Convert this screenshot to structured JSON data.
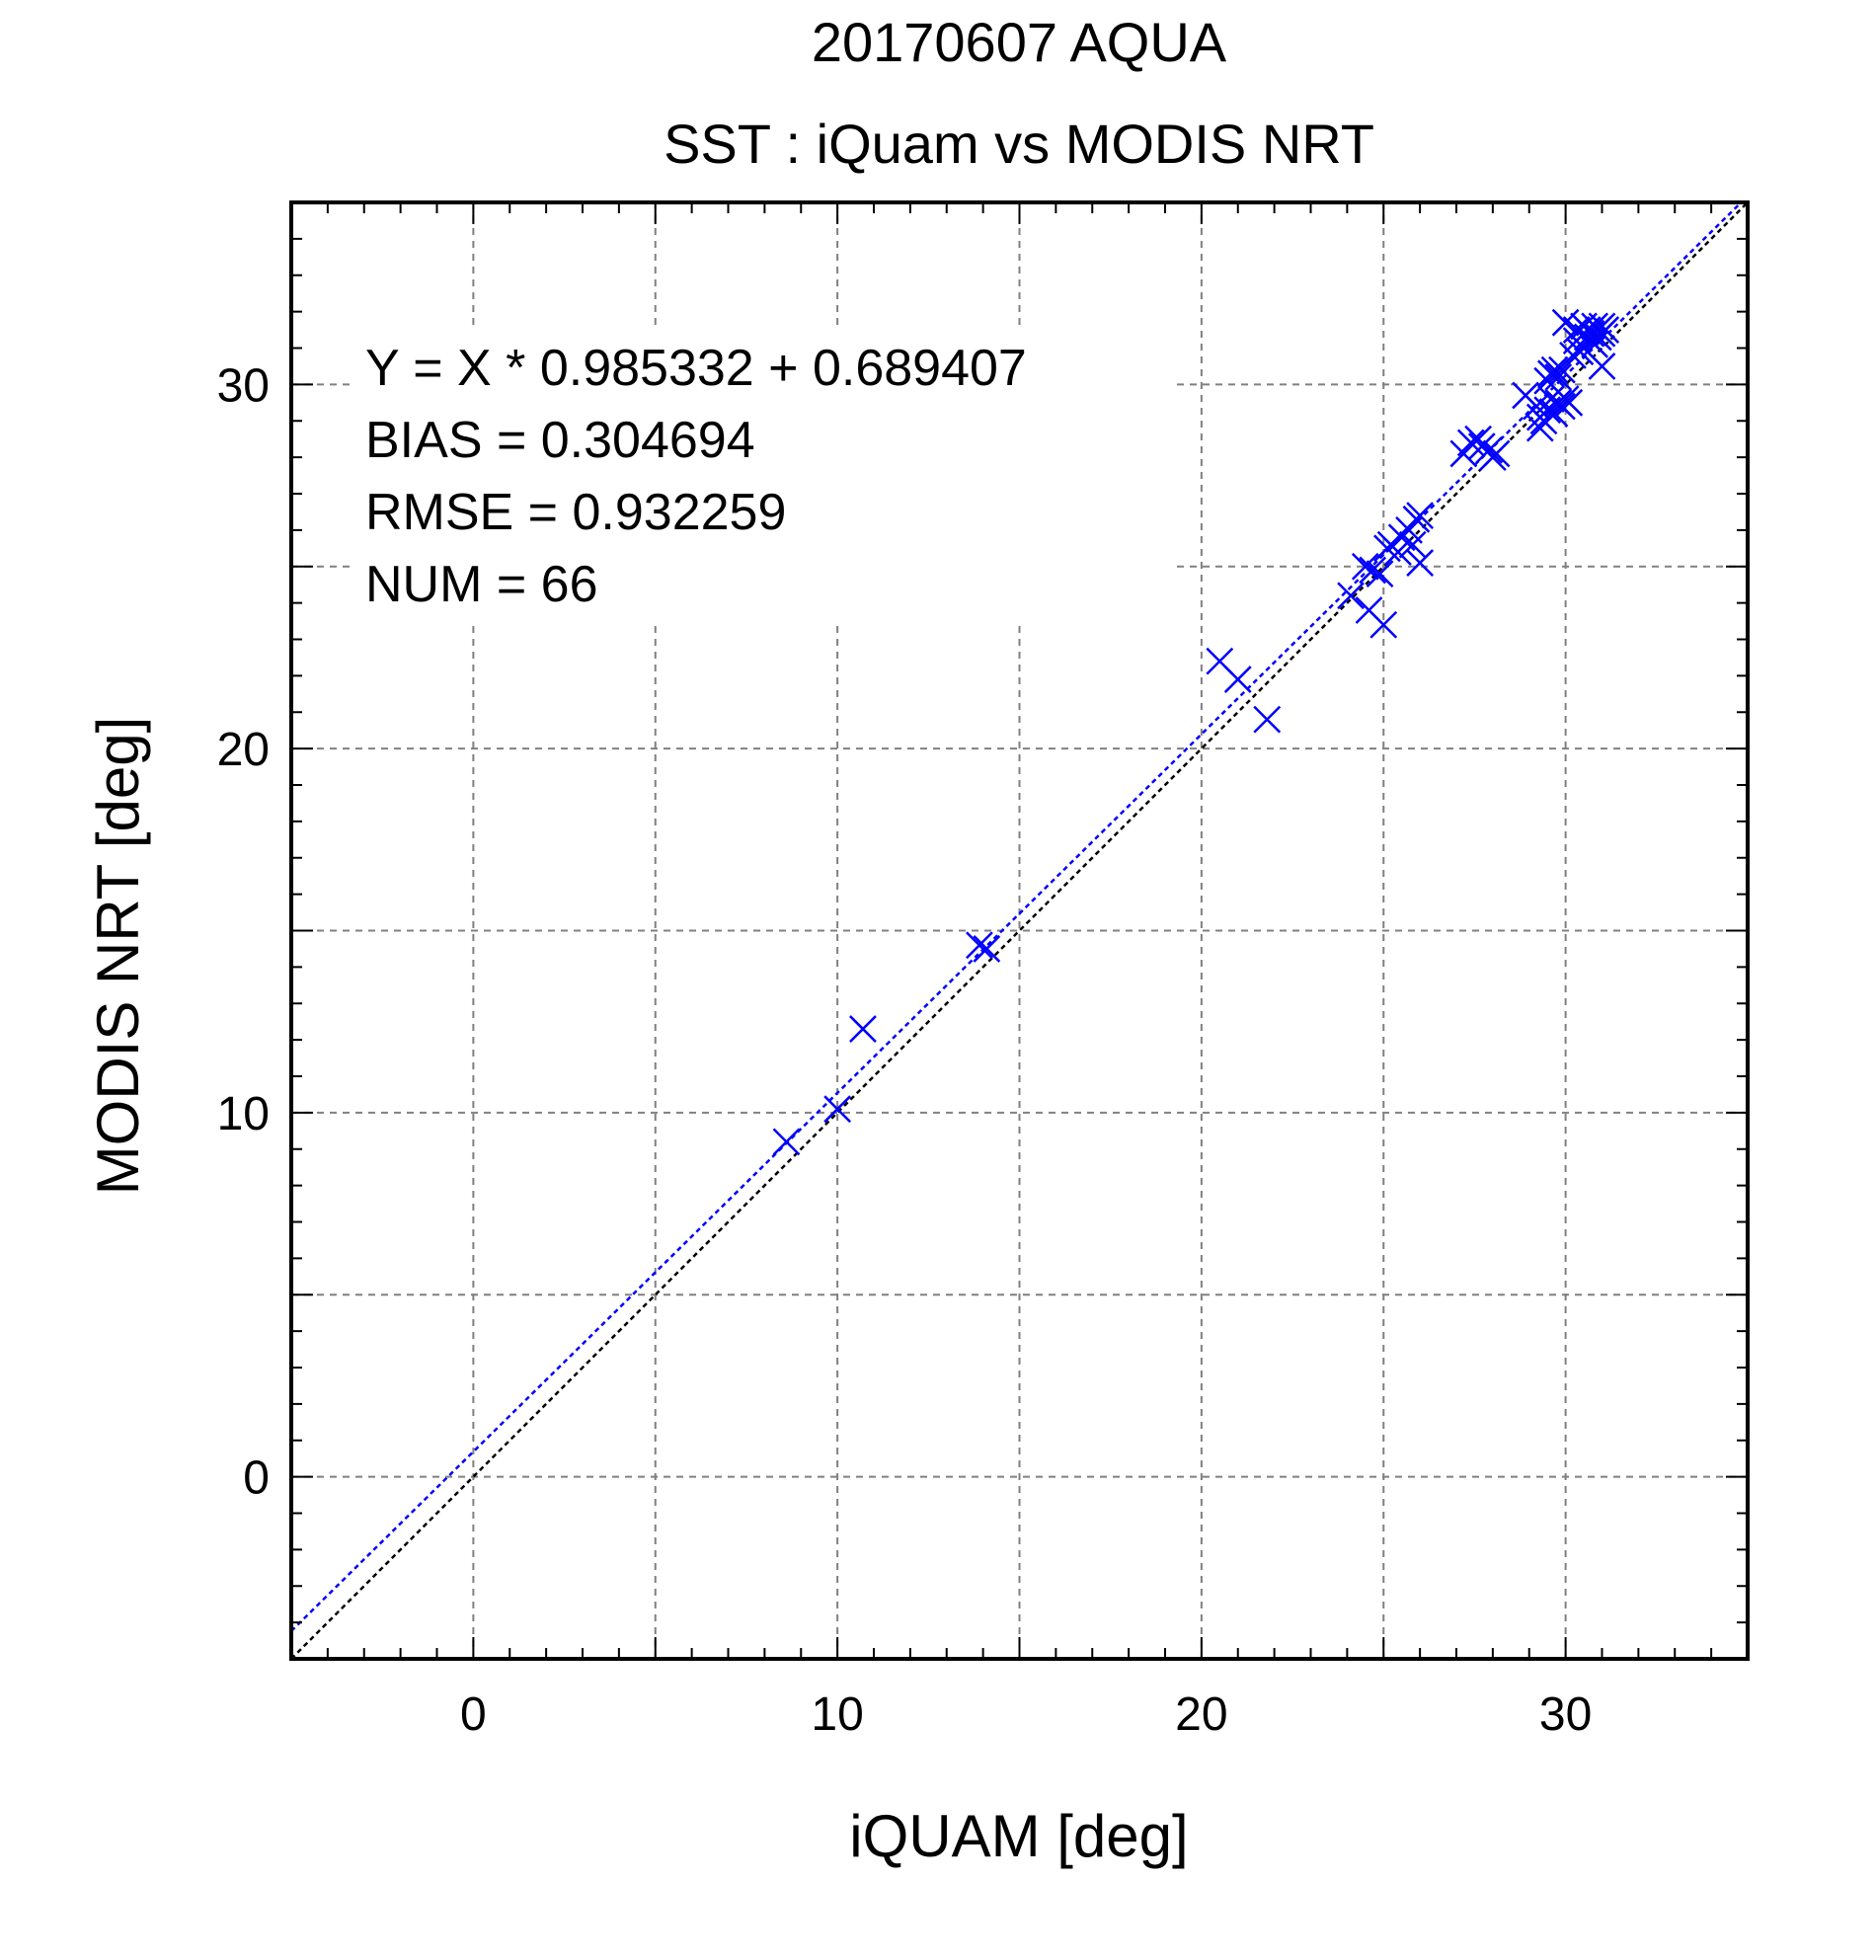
{
  "chart_data": {
    "type": "scatter",
    "title": "20170607 AQUA",
    "subtitle": "SST : iQuam vs MODIS NRT",
    "xlabel": "iQUAM [deg]",
    "ylabel": "MODIS NRT [deg]",
    "xlim": [
      -5,
      35
    ],
    "ylim": [
      -5,
      35
    ],
    "xticks": [
      0,
      10,
      20,
      30
    ],
    "yticks": [
      0,
      10,
      20,
      30
    ],
    "xtick_labels": [
      "0",
      "10",
      "20",
      "30"
    ],
    "ytick_labels": [
      "0",
      "10",
      "20",
      "30"
    ],
    "grid_step": 5,
    "minor_tick_step": 1,
    "grid": true,
    "marker": "x",
    "series_color": "#0000ff",
    "identity_line_color": "#000000",
    "fit_line_color": "#0000ff",
    "fit": {
      "slope": 0.985332,
      "intercept": 0.689407
    },
    "annotations": [
      "Y = X * 0.985332 + 0.689407",
      "BIAS = 0.304694",
      "RMSE = 0.932259",
      "NUM = 66"
    ],
    "points": [
      [
        8.6,
        9.2
      ],
      [
        10.0,
        10.1
      ],
      [
        10.7,
        12.3
      ],
      [
        13.9,
        14.6
      ],
      [
        14.1,
        14.5
      ],
      [
        20.5,
        22.4
      ],
      [
        21.0,
        21.9
      ],
      [
        21.8,
        20.8
      ],
      [
        24.1,
        24.2
      ],
      [
        24.5,
        25.0
      ],
      [
        24.6,
        23.8
      ],
      [
        24.7,
        24.9
      ],
      [
        24.9,
        24.8
      ],
      [
        25.0,
        23.4
      ],
      [
        25.1,
        25.5
      ],
      [
        25.2,
        25.6
      ],
      [
        25.4,
        25.4
      ],
      [
        25.5,
        25.8
      ],
      [
        25.7,
        26.0
      ],
      [
        25.8,
        25.6
      ],
      [
        25.9,
        26.3
      ],
      [
        26.0,
        25.1
      ],
      [
        26.0,
        26.4
      ],
      [
        27.2,
        28.1
      ],
      [
        27.4,
        28.4
      ],
      [
        27.6,
        28.5
      ],
      [
        27.7,
        28.3
      ],
      [
        27.9,
        28.2
      ],
      [
        28.0,
        28.0
      ],
      [
        28.1,
        28.1
      ],
      [
        28.9,
        29.7
      ],
      [
        29.2,
        29.4
      ],
      [
        29.3,
        29.1
      ],
      [
        29.3,
        28.8
      ],
      [
        29.4,
        29.0
      ],
      [
        29.5,
        29.3
      ],
      [
        29.5,
        30.1
      ],
      [
        29.6,
        29.6
      ],
      [
        29.6,
        30.3
      ],
      [
        29.7,
        30.4
      ],
      [
        29.7,
        29.2
      ],
      [
        29.8,
        30.2
      ],
      [
        29.8,
        29.5
      ],
      [
        29.9,
        30.4
      ],
      [
        29.9,
        29.4
      ],
      [
        30.0,
        29.6
      ],
      [
        30.0,
        31.7
      ],
      [
        30.1,
        29.5
      ],
      [
        30.2,
        30.8
      ],
      [
        30.3,
        31.2
      ],
      [
        30.3,
        31.5
      ],
      [
        30.4,
        30.9
      ],
      [
        30.5,
        31.0
      ],
      [
        30.5,
        31.6
      ],
      [
        30.6,
        31.3
      ],
      [
        30.6,
        31.5
      ],
      [
        30.7,
        31.2
      ],
      [
        30.7,
        31.4
      ],
      [
        30.8,
        31.6
      ],
      [
        30.8,
        31.1
      ],
      [
        30.9,
        31.3
      ],
      [
        30.9,
        31.5
      ],
      [
        31.0,
        31.4
      ],
      [
        31.0,
        31.6
      ],
      [
        31.1,
        31.5
      ],
      [
        31.0,
        30.5
      ]
    ]
  }
}
